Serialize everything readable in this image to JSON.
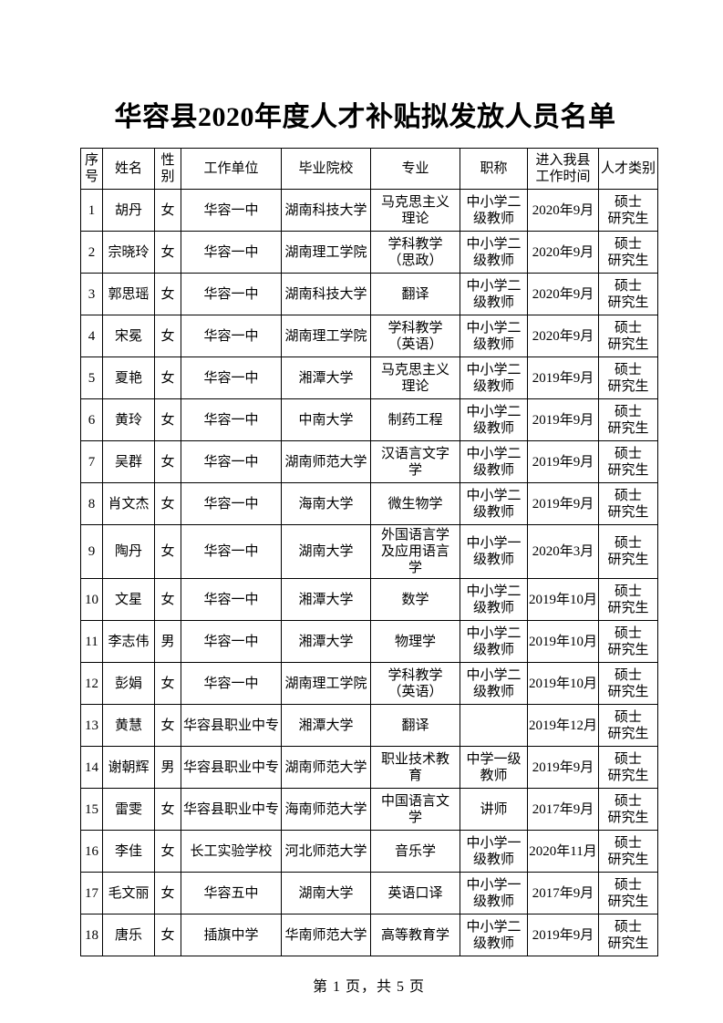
{
  "page": {
    "title": "华容县2020年度人才补贴拟发放人员名单",
    "footer": "第 1 页，共 5 页"
  },
  "table": {
    "headers": [
      "序\n号",
      "姓名",
      "性\n别",
      "工作单位",
      "毕业院校",
      "专业",
      "职称",
      "进入我县\n工作时间",
      "人才类别"
    ],
    "rows": [
      [
        "1",
        "胡丹",
        "女",
        "华容一中",
        "湖南科技大学",
        "马克思主义\n理论",
        "中小学二\n级教师",
        "2020年9月",
        "硕士\n研究生"
      ],
      [
        "2",
        "宗晓玲",
        "女",
        "华容一中",
        "湖南理工学院",
        "学科教学\n（思政）",
        "中小学二\n级教师",
        "2020年9月",
        "硕士\n研究生"
      ],
      [
        "3",
        "郭思瑶",
        "女",
        "华容一中",
        "湖南科技大学",
        "翻译",
        "中小学二\n级教师",
        "2020年9月",
        "硕士\n研究生"
      ],
      [
        "4",
        "宋冕",
        "女",
        "华容一中",
        "湖南理工学院",
        "学科教学\n（英语）",
        "中小学二\n级教师",
        "2020年9月",
        "硕士\n研究生"
      ],
      [
        "5",
        "夏艳",
        "女",
        "华容一中",
        "湘潭大学",
        "马克思主义\n理论",
        "中小学二\n级教师",
        "2019年9月",
        "硕士\n研究生"
      ],
      [
        "6",
        "黄玲",
        "女",
        "华容一中",
        "中南大学",
        "制药工程",
        "中小学二\n级教师",
        "2019年9月",
        "硕士\n研究生"
      ],
      [
        "7",
        "吴群",
        "女",
        "华容一中",
        "湖南师范大学",
        "汉语言文字\n学",
        "中小学二\n级教师",
        "2019年9月",
        "硕士\n研究生"
      ],
      [
        "8",
        "肖文杰",
        "女",
        "华容一中",
        "海南大学",
        "微生物学",
        "中小学二\n级教师",
        "2019年9月",
        "硕士\n研究生"
      ],
      [
        "9",
        "陶丹",
        "女",
        "华容一中",
        "湖南大学",
        "外国语言学\n及应用语言\n学",
        "中小学一\n级教师",
        "2020年3月",
        "硕士\n研究生"
      ],
      [
        "10",
        "文星",
        "女",
        "华容一中",
        "湘潭大学",
        "数学",
        "中小学二\n级教师",
        "2019年10月",
        "硕士\n研究生"
      ],
      [
        "11",
        "李志伟",
        "男",
        "华容一中",
        "湘潭大学",
        "物理学",
        "中小学二\n级教师",
        "2019年10月",
        "硕士\n研究生"
      ],
      [
        "12",
        "彭娟",
        "女",
        "华容一中",
        "湖南理工学院",
        "学科教学\n（英语）",
        "中小学二\n级教师",
        "2019年10月",
        "硕士\n研究生"
      ],
      [
        "13",
        "黄慧",
        "女",
        "华容县职业中专",
        "湘潭大学",
        "翻译",
        "",
        "2019年12月",
        "硕士\n研究生"
      ],
      [
        "14",
        "谢朝辉",
        "男",
        "华容县职业中专",
        "湖南师范大学",
        "职业技术教\n育",
        "中学一级\n教师",
        "2019年9月",
        "硕士\n研究生"
      ],
      [
        "15",
        "雷雯",
        "女",
        "华容县职业中专",
        "海南师范大学",
        "中国语言文\n学",
        "讲师",
        "2017年9月",
        "硕士\n研究生"
      ],
      [
        "16",
        "李佳",
        "女",
        "长工实验学校",
        "河北师范大学",
        "音乐学",
        "中小学一\n级教师",
        "2020年11月",
        "硕士\n研究生"
      ],
      [
        "17",
        "毛文丽",
        "女",
        "华容五中",
        "湖南大学",
        "英语口译",
        "中小学一\n级教师",
        "2017年9月",
        "硕士\n研究生"
      ],
      [
        "18",
        "唐乐",
        "女",
        "插旗中学",
        "华南师范大学",
        "高等教育学",
        "中小学二\n级教师",
        "2019年9月",
        "硕士\n研究生"
      ]
    ]
  }
}
